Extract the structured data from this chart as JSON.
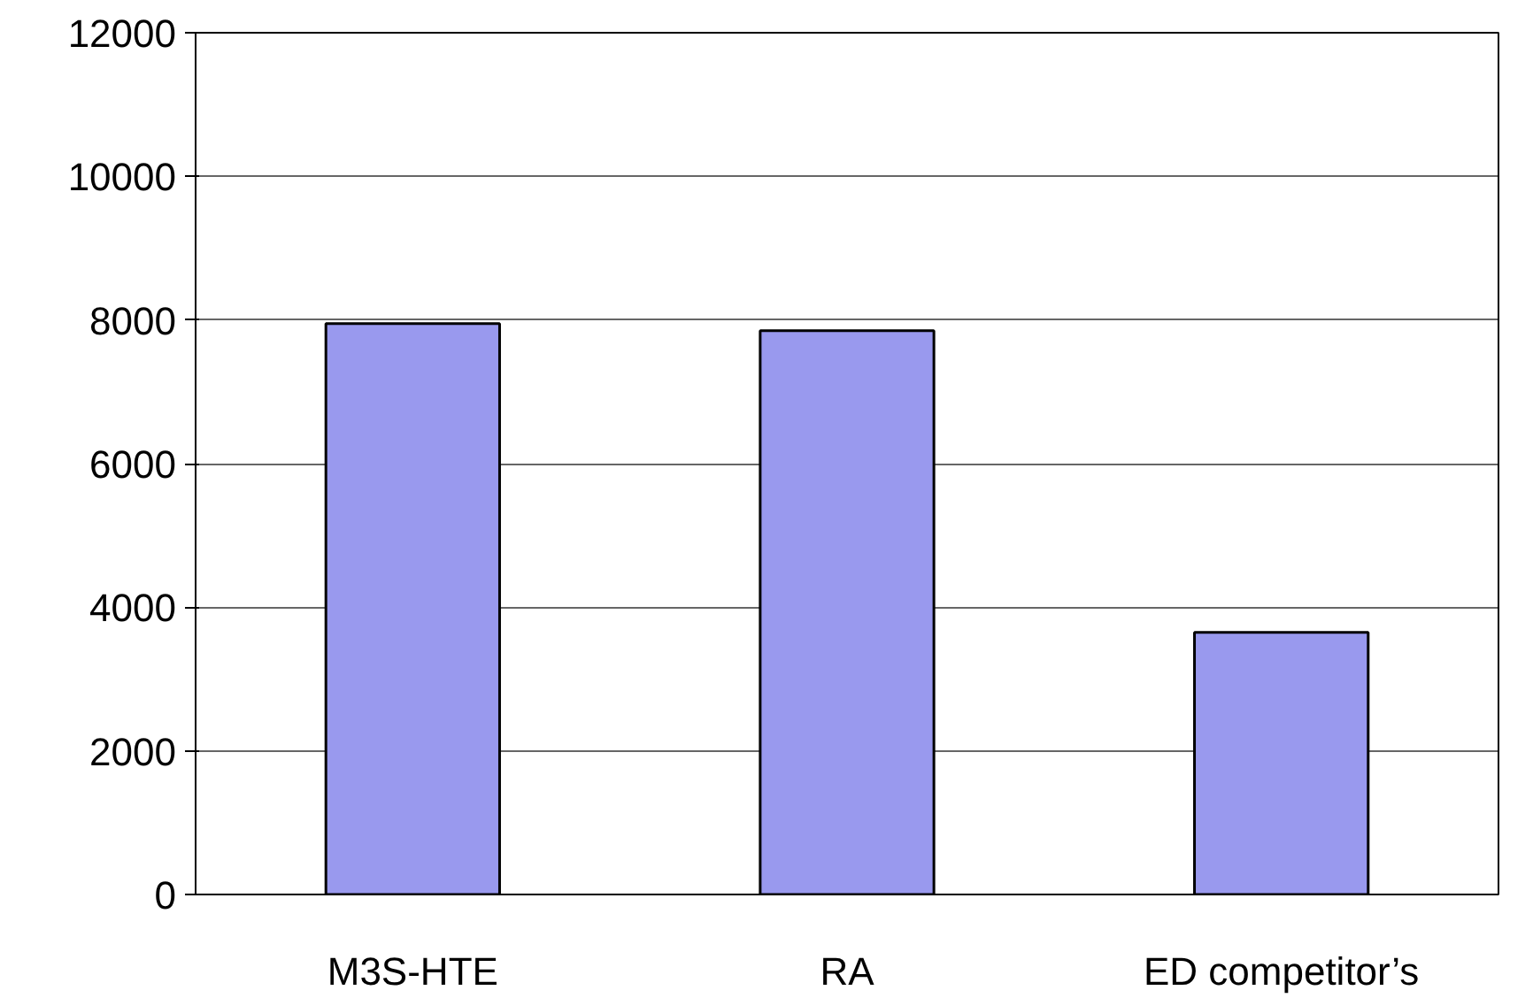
{
  "chart_data": {
    "type": "bar",
    "categories": [
      "M3S-HTE",
      "RA",
      "ED competitor’s"
    ],
    "values": [
      7950,
      7850,
      3650
    ],
    "color": "#9999ee",
    "ylim": [
      0,
      12000
    ],
    "yticks": [
      0,
      2000,
      4000,
      6000,
      8000,
      10000,
      12000
    ],
    "grid": "y"
  }
}
